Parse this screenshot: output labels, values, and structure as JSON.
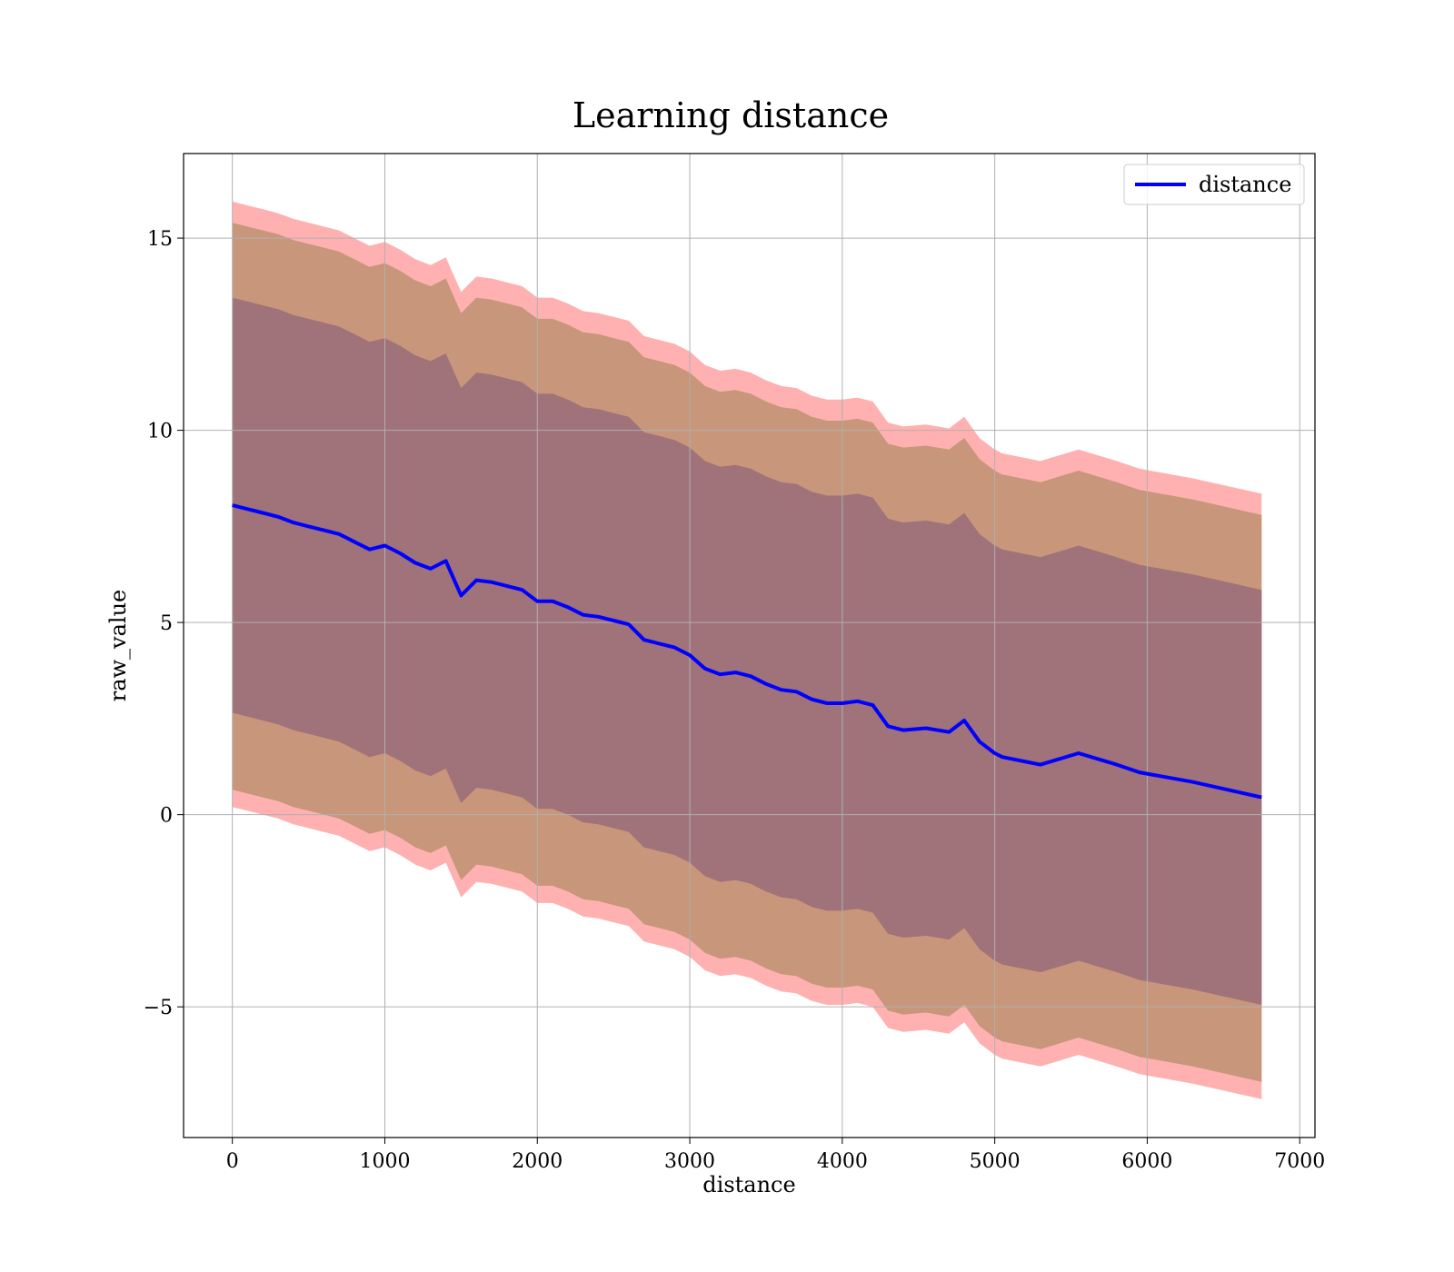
{
  "chart_data": {
    "type": "line",
    "title": "Learning distance",
    "xlabel": "distance",
    "ylabel": "raw_value",
    "xlim": [
      -320,
      7100
    ],
    "ylim": [
      -8.4,
      17.2
    ],
    "xticks": [
      0,
      1000,
      2000,
      3000,
      4000,
      5000,
      6000,
      7000
    ],
    "xtick_labels": [
      "0",
      "1000",
      "2000",
      "3000",
      "4000",
      "5000",
      "6000",
      "7000"
    ],
    "yticks": [
      -5,
      0,
      5,
      10,
      15
    ],
    "ytick_labels": [
      "−5",
      "0",
      "5",
      "10",
      "15"
    ],
    "grid": true,
    "legend_position": "top-right",
    "colors": {
      "line": "#0000ff",
      "band_outer": "#ffb1b1",
      "band_middle": "#c8967a",
      "band_inner": "#a0727a"
    },
    "series": [
      {
        "name": "distance",
        "x": [
          0,
          100,
          200,
          300,
          400,
          500,
          600,
          700,
          800,
          900,
          1000,
          1100,
          1200,
          1300,
          1400,
          1500,
          1600,
          1700,
          1800,
          1900,
          2000,
          2100,
          2200,
          2300,
          2400,
          2500,
          2600,
          2700,
          2800,
          2900,
          3000,
          3100,
          3200,
          3300,
          3400,
          3500,
          3600,
          3700,
          3800,
          3900,
          4000,
          4100,
          4200,
          4300,
          4400,
          4550,
          4700,
          4800,
          4900,
          5000,
          5050,
          5300,
          5550,
          5800,
          5950,
          6300,
          6750
        ],
        "y": [
          8.05,
          7.95,
          7.85,
          7.75,
          7.6,
          7.5,
          7.4,
          7.3,
          7.1,
          6.9,
          7.0,
          6.8,
          6.55,
          6.4,
          6.6,
          5.7,
          6.1,
          6.05,
          5.95,
          5.85,
          5.55,
          5.55,
          5.4,
          5.2,
          5.15,
          5.05,
          4.95,
          4.55,
          4.45,
          4.35,
          4.15,
          3.8,
          3.65,
          3.7,
          3.6,
          3.4,
          3.25,
          3.2,
          3.0,
          2.9,
          2.9,
          2.95,
          2.85,
          2.3,
          2.2,
          2.25,
          2.15,
          2.45,
          1.9,
          1.6,
          1.5,
          1.3,
          1.6,
          1.3,
          1.1,
          0.85,
          0.45
        ]
      }
    ],
    "bands": [
      {
        "label": "outer",
        "offset_upper": 7.9,
        "offset_lower": 7.85
      },
      {
        "label": "middle",
        "offset_upper": 7.35,
        "offset_lower": 7.4
      },
      {
        "label": "inner",
        "offset_upper": 5.4,
        "offset_lower": 5.4
      }
    ]
  }
}
